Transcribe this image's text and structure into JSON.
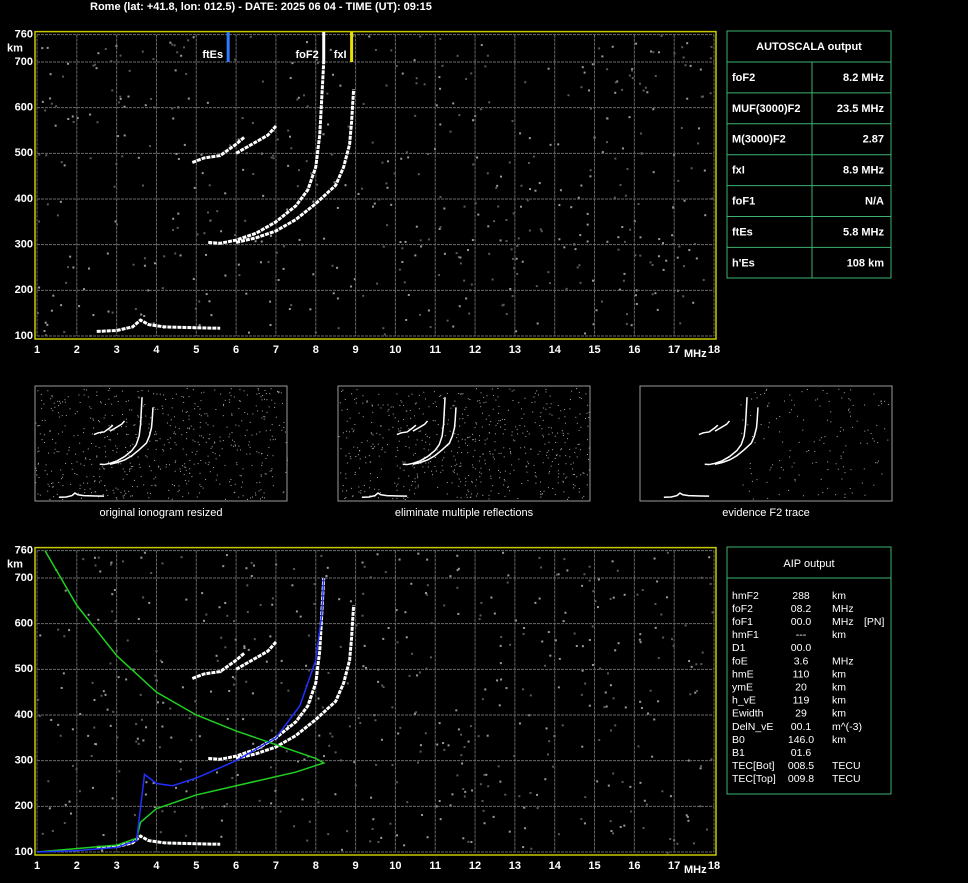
{
  "header": {
    "title": "Rome (lat: +41.8, lon: 012.5) - DATE: 2025 06 04 - TIME (UT): 09:15"
  },
  "ionogram": {
    "y_unit": "km",
    "x_unit": "MHz",
    "xlim": [
      1,
      18
    ],
    "ylim": [
      100,
      760
    ],
    "xticks": [
      1,
      2,
      3,
      4,
      5,
      6,
      7,
      8,
      9,
      10,
      11,
      12,
      13,
      14,
      15,
      16,
      17,
      18
    ],
    "yticks": [
      100,
      200,
      300,
      400,
      500,
      600,
      700,
      760
    ],
    "markers": [
      {
        "label": "ftEs",
        "value": 5.8,
        "color": "#2f7bff"
      },
      {
        "label": "foF2",
        "value": 8.2,
        "color": "#ffffff"
      },
      {
        "label": "fxI",
        "value": 8.9,
        "color": "#e8e000"
      }
    ],
    "traces": [
      {
        "f": [
          5.3,
          5.6,
          6.0,
          6.5,
          7.0,
          7.5,
          7.8,
          8.0,
          8.1,
          8.15,
          8.2
        ],
        "h": [
          305,
          303,
          310,
          325,
          350,
          385,
          420,
          470,
          540,
          620,
          700
        ]
      },
      {
        "f": [
          6.0,
          6.5,
          7.0,
          7.5,
          8.0,
          8.5,
          8.7,
          8.85,
          8.9,
          8.95
        ],
        "h": [
          305,
          315,
          330,
          355,
          390,
          430,
          470,
          520,
          570,
          640
        ]
      },
      {
        "f": [
          2.5,
          3.0,
          3.4,
          3.6,
          3.8,
          4.2,
          5.0,
          5.6
        ],
        "h": [
          110,
          112,
          120,
          135,
          125,
          120,
          118,
          117
        ]
      },
      {
        "f": [
          4.9,
          5.2,
          5.6,
          6.0,
          6.2
        ],
        "h": [
          480,
          490,
          495,
          520,
          535
        ]
      },
      {
        "f": [
          6.0,
          6.4,
          6.8,
          7.0
        ],
        "h": [
          500,
          520,
          540,
          560
        ]
      }
    ]
  },
  "autoscala": {
    "title": "AUTOSCALA output",
    "rows": [
      {
        "label": "foF2",
        "value": "8.2 MHz",
        "color": "#ffffff"
      },
      {
        "label": "MUF(3000)F2",
        "value": "23.5 MHz",
        "color": "#ffffff"
      },
      {
        "label": "M(3000)F2",
        "value": "2.87",
        "color": "#ffffff"
      },
      {
        "label": "fxI",
        "value": "8.9 MHz",
        "color": "#e8e000"
      },
      {
        "label": "foF1",
        "value": "N/A",
        "color": "#ff2020"
      },
      {
        "label": "ftEs",
        "value": "5.8 MHz",
        "color": "#2f7bff"
      },
      {
        "label": "h'Es",
        "value": "108    km",
        "color": "#ffffff"
      }
    ]
  },
  "thumbnails": [
    {
      "caption": "original ionogram resized"
    },
    {
      "caption": "eliminate multiple reflections"
    },
    {
      "caption": "evidence F2 trace"
    }
  ],
  "aip_chart": {
    "profile": {
      "color": "#20d020",
      "f": [
        1.2,
        2.0,
        3.0,
        4.0,
        5.0,
        6.0,
        7.0,
        8.0,
        8.2,
        7.5,
        6.5,
        5.0,
        4.0,
        3.6,
        3.5,
        3.0,
        1.0
      ],
      "h": [
        760,
        640,
        530,
        450,
        400,
        365,
        335,
        305,
        295,
        275,
        255,
        225,
        195,
        165,
        130,
        115,
        100
      ]
    },
    "fit": {
      "color": "#2030ff",
      "f": [
        1.0,
        2.0,
        3.0,
        3.5,
        3.7,
        4.0,
        4.4,
        5.0,
        6.0,
        7.0,
        7.6,
        8.0,
        8.15,
        8.2
      ],
      "h": [
        100,
        103,
        110,
        125,
        270,
        250,
        245,
        262,
        300,
        350,
        420,
        520,
        620,
        700
      ]
    }
  },
  "aip": {
    "title": "AIP output",
    "rows": [
      [
        "hmF2",
        "288",
        "km",
        ""
      ],
      [
        "foF2",
        "08.2",
        "MHz",
        ""
      ],
      [
        "foF1",
        "00.0",
        "MHz",
        "[PN]"
      ],
      [
        "hmF1",
        "---",
        "km",
        ""
      ],
      [
        "D1",
        "00.0",
        "",
        ""
      ],
      [
        "foE",
        "3.6",
        "MHz",
        ""
      ],
      [
        "hmE",
        "110",
        "km",
        ""
      ],
      [
        "ymE",
        "20",
        "km",
        ""
      ],
      [
        "h_vE",
        "119",
        "km",
        ""
      ],
      [
        "Ewidth",
        "29",
        "km",
        ""
      ],
      [
        "DelN_vE",
        "00.1",
        "m^(-3)",
        ""
      ],
      [
        "B0",
        "146.0",
        "km",
        ""
      ],
      [
        "B1",
        "01.6",
        "",
        ""
      ],
      [
        "TEC[Bot]",
        "008.5",
        "TECU",
        ""
      ],
      [
        "TEC[Top]",
        "009.8",
        "TECU",
        ""
      ]
    ]
  }
}
